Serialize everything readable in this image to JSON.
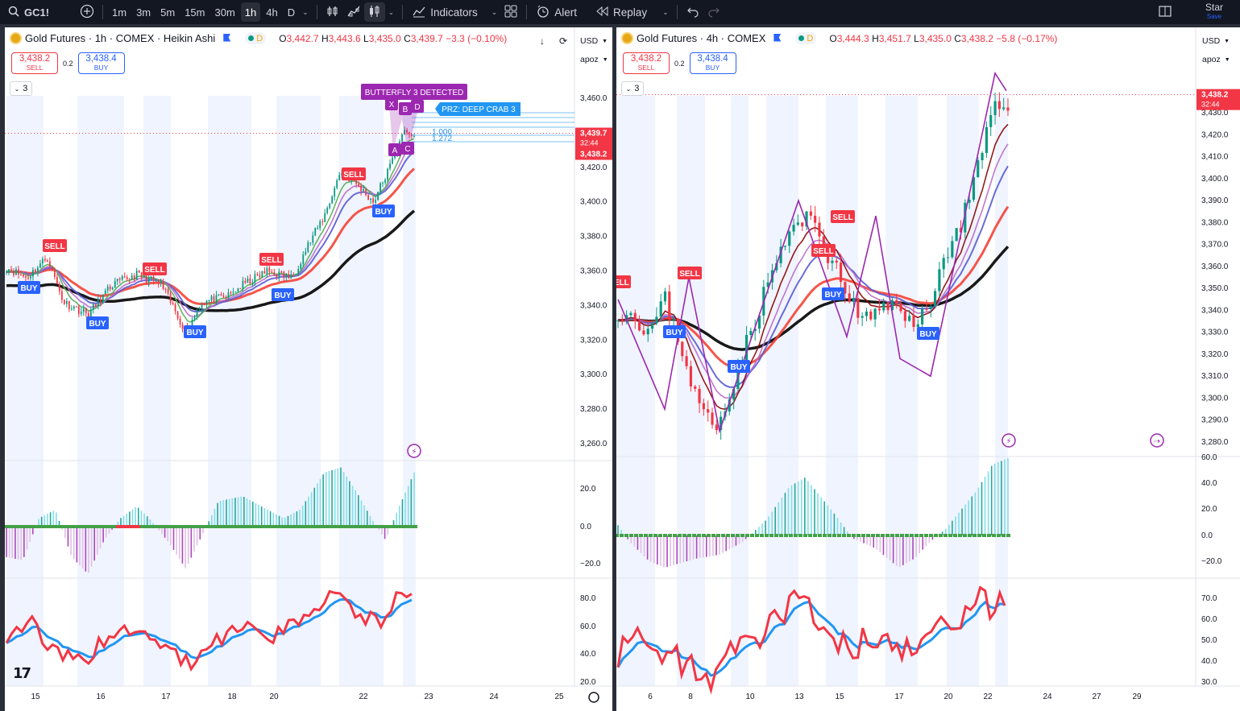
{
  "toolbar": {
    "symbol": "GC1!",
    "intervals": [
      "1m",
      "3m",
      "5m",
      "15m",
      "30m",
      "1h",
      "4h",
      "D"
    ],
    "active_interval": "1h",
    "indicators_label": "Indicators",
    "alert_label": "Alert",
    "replay_label": "Replay",
    "star_label": "Star",
    "save_label": "Save"
  },
  "left": {
    "title": "Gold Futures · 1h · COMEX · Heikin Ashi",
    "badge": "D",
    "ohlc": {
      "o_label": "O",
      "o": "3,442.7",
      "h_label": "H",
      "h": "3,443.6",
      "l_label": "L",
      "l": "3,435.0",
      "c_label": "C",
      "c": "3,439.7",
      "chg": "−3.3 (−0.10%)"
    },
    "sell_price": "3,438.2",
    "sell_label": "SELL",
    "spread": "0.2",
    "buy_price": "3,438.4",
    "buy_label": "BUY",
    "ind_count": "3",
    "currency": "USD",
    "scale_mode": "apoz",
    "price_ticks": [
      "3,460.0",
      "3,440.0",
      "3,420.0",
      "3,400.0",
      "3,380.0",
      "3,360.0",
      "3,340.0",
      "3,320.0",
      "3,300.0",
      "3,280.0",
      "3,260.0"
    ],
    "price_tick_values": [
      3460,
      3440,
      3420,
      3400,
      3380,
      3360,
      3340,
      3320,
      3300,
      3280,
      3260
    ],
    "last_price_label": "3,439.7",
    "countdown": "32:44",
    "bid_label": "3,438.2",
    "osc_ticks": [
      "20.0",
      "0.0",
      "−20.0"
    ],
    "rsi_ticks": [
      "80.0",
      "60.0",
      "40.0",
      "20.0"
    ],
    "time_labels": [
      "15",
      "16",
      "17",
      "18",
      "20",
      "22",
      "23",
      "24",
      "25"
    ],
    "pattern_label": "BUTTERFLY 3 DETECTED",
    "prz_label": "PRZ: DEEP CRAB 3",
    "point_labels": [
      "X",
      "A",
      "C",
      "B",
      "D"
    ],
    "fib_labels": [
      "1.000",
      "1.272"
    ],
    "signals": [
      {
        "type": "SELL",
        "index": 0
      },
      {
        "type": "BUY",
        "index": 1
      },
      {
        "type": "BUY",
        "index": 2
      },
      {
        "type": "SELL",
        "index": 3
      },
      {
        "type": "BUY",
        "index": 4
      },
      {
        "type": "SELL",
        "index": 5
      },
      {
        "type": "BUY",
        "index": 6
      },
      {
        "type": "SELL",
        "index": 7
      },
      {
        "type": "BUY",
        "index": 8
      }
    ]
  },
  "right": {
    "title": "Gold Futures · 4h · COMEX",
    "badge": "D",
    "ohlc": {
      "o_label": "O",
      "o": "3,444.3",
      "h_label": "H",
      "h": "3,451.7",
      "l_label": "L",
      "l": "3,435.0",
      "c_label": "C",
      "c": "3,438.2",
      "chg": "−5.8 (−0.17%)"
    },
    "sell_price": "3,438.2",
    "sell_label": "SELL",
    "spread": "0.2",
    "buy_price": "3,438.4",
    "buy_label": "BUY",
    "ind_count": "3",
    "currency": "USD",
    "scale_mode": "apoz",
    "price_ticks": [
      "3,430.0",
      "3,420.0",
      "3,410.0",
      "3,400.0",
      "3,390.0",
      "3,380.0",
      "3,370.0",
      "3,360.0",
      "3,350.0",
      "3,340.0",
      "3,330.0",
      "3,320.0",
      "3,310.0",
      "3,300.0",
      "3,290.0",
      "3,280.0"
    ],
    "price_tick_values": [
      3430,
      3420,
      3410,
      3400,
      3390,
      3380,
      3370,
      3360,
      3350,
      3340,
      3330,
      3320,
      3310,
      3300,
      3290,
      3280
    ],
    "last_price_label": "3,438.2",
    "countdown": "32:44",
    "osc_ticks": [
      "60.0",
      "40.0",
      "20.0",
      "0.0",
      "−20.0"
    ],
    "rsi_ticks": [
      "70.0",
      "60.0",
      "50.0",
      "40.0",
      "30.0"
    ],
    "time_labels": [
      "6",
      "8",
      "10",
      "13",
      "15",
      "17",
      "20",
      "22",
      "24",
      "27",
      "29"
    ],
    "signals": [
      {
        "type": "SELL",
        "index": 0
      },
      {
        "type": "SELL",
        "index": 1
      },
      {
        "type": "BUY",
        "index": 2
      },
      {
        "type": "BUY",
        "index": 3
      },
      {
        "type": "SELL",
        "index": 4
      },
      {
        "type": "SELL",
        "index": 5
      },
      {
        "type": "BUY",
        "index": 6
      },
      {
        "type": "BUY",
        "index": 7
      }
    ]
  },
  "colors": {
    "up": "#089981",
    "down": "#f23645",
    "sell": "#f23645",
    "buy": "#2962ff",
    "pattern": "#9c27b0",
    "prz": "#2196f3",
    "ema_red": "#f44336",
    "ema_black": "#000000",
    "rsi_red": "#f23645",
    "rsi_blue": "#2196f3",
    "osc_pos": "#80deea",
    "osc_neg": "#e1bee7"
  }
}
